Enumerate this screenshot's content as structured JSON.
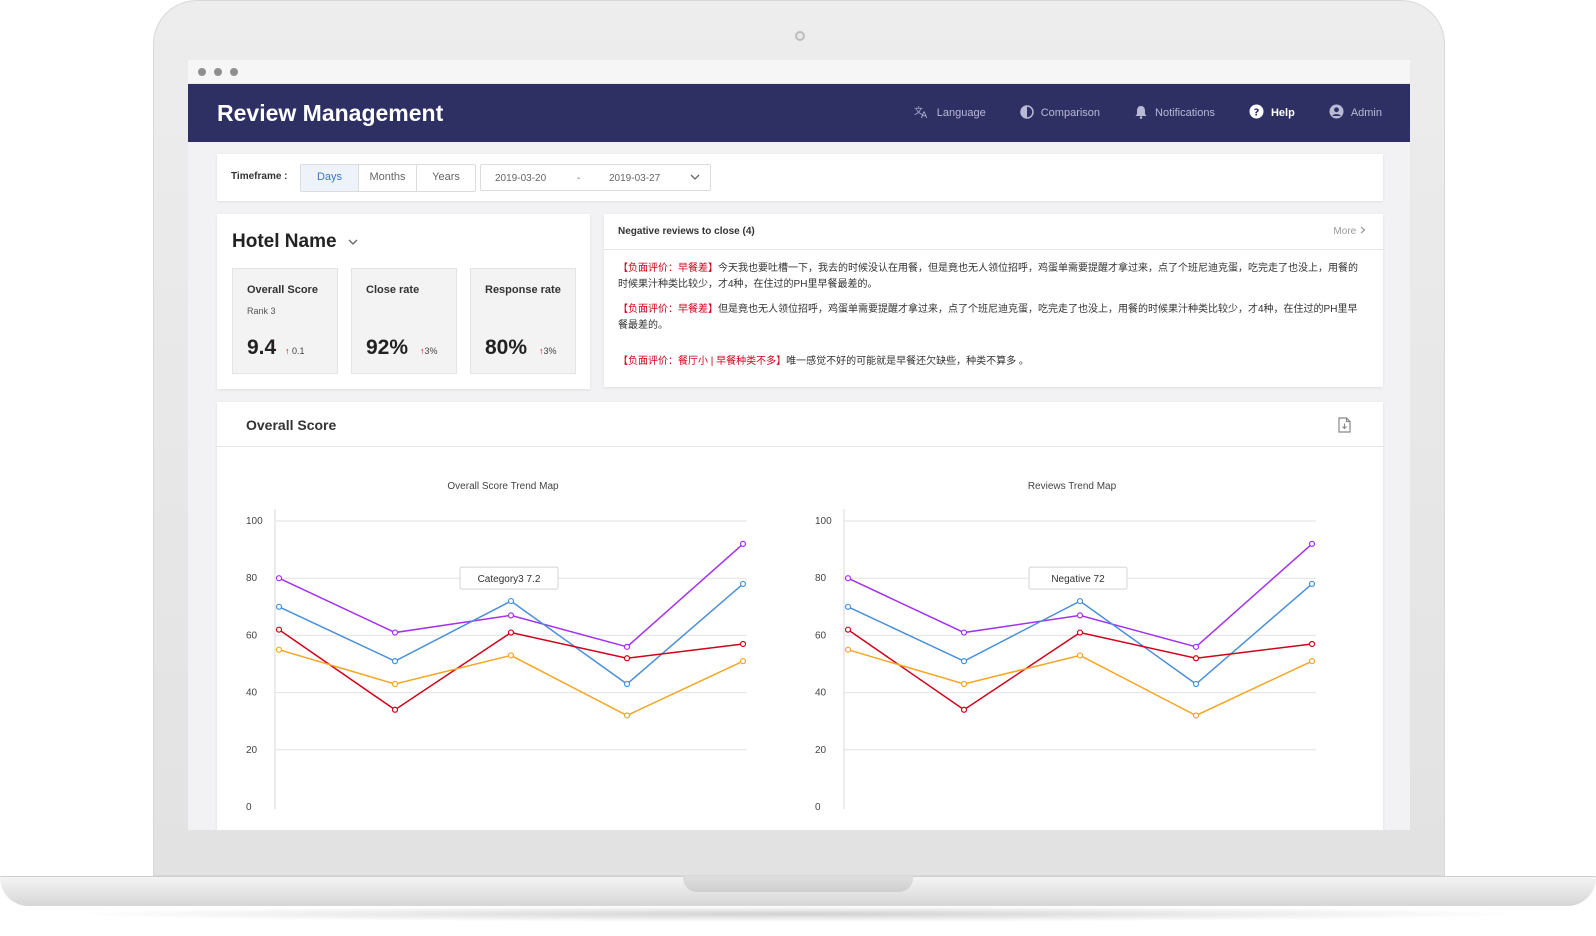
{
  "app": {
    "title": "Review Management"
  },
  "nav": [
    {
      "label": "Language",
      "icon": "translate-icon",
      "active": false
    },
    {
      "label": "Comparison",
      "icon": "contrast-icon",
      "active": false
    },
    {
      "label": "Notifications",
      "icon": "bell-icon",
      "active": false
    },
    {
      "label": "Help",
      "icon": "help-icon",
      "active": true
    },
    {
      "label": "Admin",
      "icon": "user-icon",
      "active": false
    }
  ],
  "timeframe": {
    "label": "Timeframe :",
    "options": [
      "Days",
      "Months",
      "Years"
    ],
    "selected": "Days",
    "start": "2019-03-20",
    "separator": "-",
    "end": "2019-03-27"
  },
  "hotel": {
    "name": "Hotel Name",
    "kpis": [
      {
        "label": "Overall Score",
        "rank": "Rank  3",
        "value": "9.4",
        "delta": "0.1"
      },
      {
        "label": "Close rate",
        "rank": "",
        "value": "92%",
        "delta": "3%"
      },
      {
        "label": "Response rate",
        "rank": "",
        "value": "80%",
        "delta": "3%"
      }
    ]
  },
  "reviews": {
    "title": "Negative reviews to close (4)",
    "more": "More",
    "items": [
      {
        "tag": "【负面评价：早餐差】",
        "text": "今天我也要吐槽一下，我去的时候没认在用餐，但是竟也无人领位招呼，鸡蛋单需要提醒才拿过来，点了个班尼迪克蛋，吃完走了也没上，用餐的时候果汁种类比较少，才4种，在住过的PH里早餐最差的。"
      },
      {
        "tag": "【负面评价：早餐差】",
        "text": "但是竟也无人领位招呼，鸡蛋单需要提醒才拿过来，点了个班尼迪克蛋，吃完走了也没上，用餐的时候果汁种类比较少，才4种，在住过的PH里早餐最差的。"
      },
      {
        "tag": "【负面评价：餐厅小 | 早餐种类不多】",
        "text": "唯一感觉不好的可能就是早餐还欠缺些，种类不算多 。"
      }
    ]
  },
  "section": {
    "title": "Overall Score"
  },
  "colors": {
    "purple": "#a431ef",
    "blue": "#4a90d9",
    "red": "#d0021b",
    "orange": "#f5a623",
    "header": "#2e2f63"
  },
  "chart_data": [
    {
      "type": "line",
      "title": "Overall Score Trend Map",
      "x": [
        1,
        2,
        3,
        4,
        5
      ],
      "ylim": [
        0,
        100
      ],
      "yticks": [
        0,
        20,
        40,
        60,
        80,
        100
      ],
      "series": [
        {
          "values": [
            80,
            61,
            67,
            56,
            92
          ],
          "color": "#a431ef"
        },
        {
          "values": [
            70,
            51,
            72,
            43,
            78
          ],
          "color": "#4a90d9"
        },
        {
          "values": [
            62,
            34,
            61,
            52,
            57
          ],
          "color": "#d0021b"
        },
        {
          "values": [
            55,
            43,
            53,
            32,
            51
          ],
          "color": "#f5a623"
        }
      ],
      "tooltip": {
        "label": "Category3",
        "value": "7.2"
      }
    },
    {
      "type": "line",
      "title": "Reviews Trend Map",
      "x": [
        1,
        2,
        3,
        4,
        5
      ],
      "ylim": [
        0,
        100
      ],
      "yticks": [
        0,
        20,
        40,
        60,
        80,
        100
      ],
      "series": [
        {
          "values": [
            80,
            61,
            67,
            56,
            92
          ],
          "color": "#a431ef"
        },
        {
          "values": [
            70,
            51,
            72,
            43,
            78
          ],
          "color": "#4a90d9"
        },
        {
          "values": [
            62,
            34,
            61,
            52,
            57
          ],
          "color": "#d0021b"
        },
        {
          "values": [
            55,
            43,
            53,
            32,
            51
          ],
          "color": "#f5a623"
        }
      ],
      "tooltip": {
        "label": "Negative",
        "value": "72"
      }
    }
  ]
}
